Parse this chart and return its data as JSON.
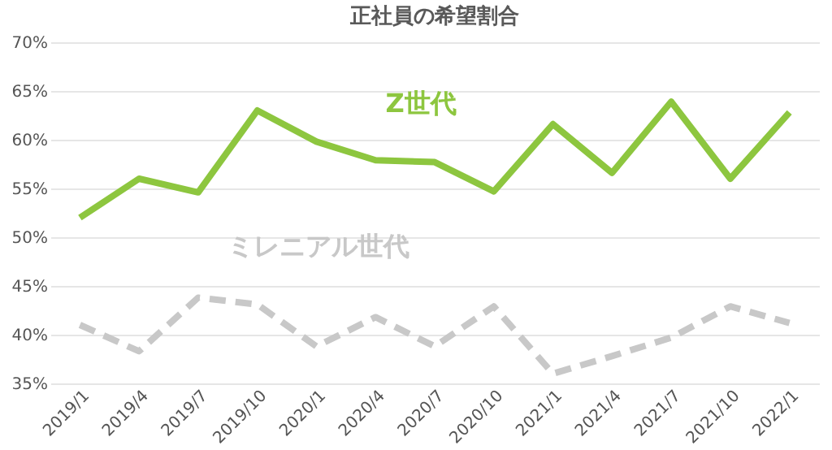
{
  "chart_data": {
    "type": "line",
    "title": "正社員の希望割合",
    "categories": [
      "2019/1",
      "2019/4",
      "2019/7",
      "2019/10",
      "2020/1",
      "2020/4",
      "2020/7",
      "2020/10",
      "2021/1",
      "2021/4",
      "2021/7",
      "2021/10",
      "2022/1"
    ],
    "series": [
      {
        "name": "Z世代",
        "color": "#8dc63f",
        "line_style": "solid",
        "values": [
          52.0,
          56.0,
          54.6,
          63.0,
          59.8,
          57.9,
          57.7,
          54.7,
          61.6,
          56.6,
          63.9,
          56.0,
          62.8
        ]
      },
      {
        "name": "ミレニアル世代",
        "color": "#c8c8c8",
        "line_style": "dashed",
        "values": [
          41.0,
          38.3,
          43.8,
          43.1,
          38.8,
          41.8,
          38.8,
          42.9,
          36.0,
          37.8,
          39.7,
          42.9,
          41.2
        ]
      }
    ],
    "ylim": [
      35,
      70
    ],
    "yticks": [
      {
        "value": 35,
        "label": "35%"
      },
      {
        "value": 40,
        "label": "40%"
      },
      {
        "value": 45,
        "label": "45%"
      },
      {
        "value": 50,
        "label": "50%"
      },
      {
        "value": 55,
        "label": "55%"
      },
      {
        "value": 60,
        "label": "60%"
      },
      {
        "value": 65,
        "label": "65%"
      },
      {
        "value": 70,
        "label": "70%"
      }
    ],
    "grid": "y",
    "marker": "none"
  }
}
